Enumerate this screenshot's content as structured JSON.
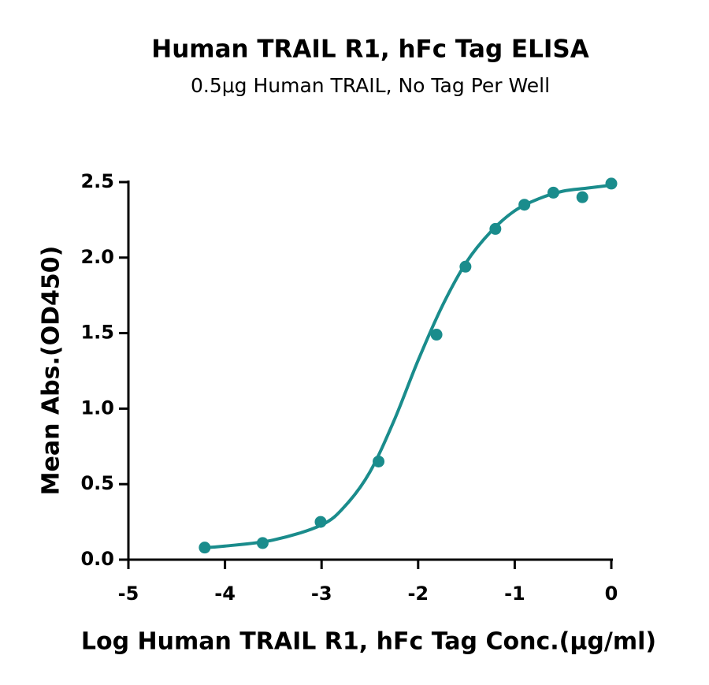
{
  "chart_data": {
    "type": "scatter",
    "title": "Human TRAIL R1, hFc Tag ELISA",
    "subtitle": "0.5μg Human TRAIL, No Tag Per Well",
    "x_label": "Log Human TRAIL R1, hFc  Tag Conc.(μg/ml)",
    "y_label": "Mean Abs.(OD450)",
    "color": "#1a8c8c",
    "xlim": [
      -5,
      0
    ],
    "ylim": [
      0,
      2.5
    ],
    "xticks": [
      -5,
      -4,
      -3,
      -2,
      -1,
      0
    ],
    "yticks": [
      {
        "value": 0,
        "label": "0.0"
      },
      0.5,
      {
        "value": 1,
        "label": "1.0"
      },
      1.5,
      {
        "value": 2,
        "label": "2.0"
      },
      2.5
    ],
    "points": {
      "x": [
        -4.21,
        -3.61,
        -3.01,
        -2.41,
        -1.81,
        -1.51,
        -1.2,
        -0.9,
        -0.6,
        -0.3,
        0
      ],
      "y": [
        0.08,
        0.11,
        0.25,
        0.65,
        1.49,
        1.94,
        2.19,
        2.35,
        2.43,
        2.4,
        2.49
      ]
    },
    "curve": {
      "x": [
        -4.21,
        -4,
        -3.5,
        -3,
        -2.75,
        -2.5,
        -2.25,
        -2,
        -1.75,
        -1.5,
        -1.25,
        -1,
        -0.75,
        -0.5,
        -0.25,
        0
      ],
      "y": [
        0.08,
        0.09,
        0.13,
        0.23,
        0.36,
        0.58,
        0.92,
        1.32,
        1.68,
        1.97,
        2.17,
        2.31,
        2.39,
        2.44,
        2.46,
        2.48
      ]
    }
  }
}
